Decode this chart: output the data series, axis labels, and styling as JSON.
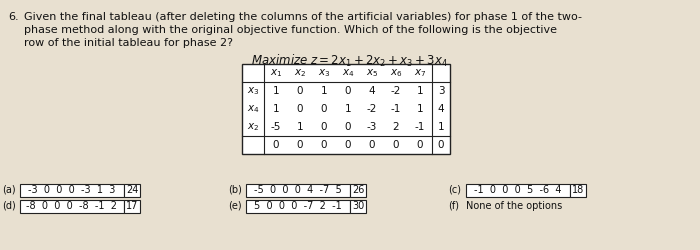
{
  "question_number": "6.",
  "question_lines": [
    "Given the final tableau (after deleting the columns of the artificial variables) for phase 1 of the two-",
    "phase method along with the original objective function. Which of the following is the objective",
    "row of the initial tableau for phase 2?"
  ],
  "objective": "Maximize $z = 2x_1 + 2x_2 + x_3 + 3x_4$",
  "col_headers": [
    "$x_1$",
    "$x_2$",
    "$x_3$",
    "$x_4$",
    "$x_5$",
    "$x_6$",
    "$x_7$"
  ],
  "row_labels": [
    "$x_3$",
    "$x_4$",
    "$x_2$",
    ""
  ],
  "tableau_data": [
    [
      1,
      0,
      1,
      0,
      4,
      -2,
      1,
      3
    ],
    [
      1,
      0,
      0,
      1,
      -2,
      -1,
      1,
      4
    ],
    [
      -5,
      1,
      0,
      0,
      -3,
      2,
      -1,
      1
    ],
    [
      0,
      0,
      0,
      0,
      0,
      0,
      0,
      0
    ]
  ],
  "options": [
    {
      "label": "(a)",
      "values": [
        "-3",
        "0",
        "0",
        "0",
        "-3",
        "1",
        "3"
      ],
      "rhs": "24"
    },
    {
      "label": "(b)",
      "values": [
        "-5",
        "0",
        "0",
        "0",
        "4",
        "-7",
        "5"
      ],
      "rhs": "26"
    },
    {
      "label": "(c)",
      "values": [
        "-1",
        "0",
        "0",
        "0",
        "5",
        "-6",
        "4"
      ],
      "rhs": "18"
    },
    {
      "label": "(d)",
      "values": [
        "-8",
        "0",
        "0",
        "0",
        "-8",
        "-1",
        "2"
      ],
      "rhs": "17"
    },
    {
      "label": "(e)",
      "values": [
        "5",
        "0",
        "0",
        "0",
        "-7",
        "2",
        "-1"
      ],
      "rhs": "30"
    },
    {
      "label": "(f)",
      "values": [
        "None of the options"
      ],
      "rhs": ""
    }
  ],
  "bg_color": "#e8e0d0",
  "paper_color": "#f0ece0",
  "text_color": "#111111",
  "table_border_color": "#222222"
}
